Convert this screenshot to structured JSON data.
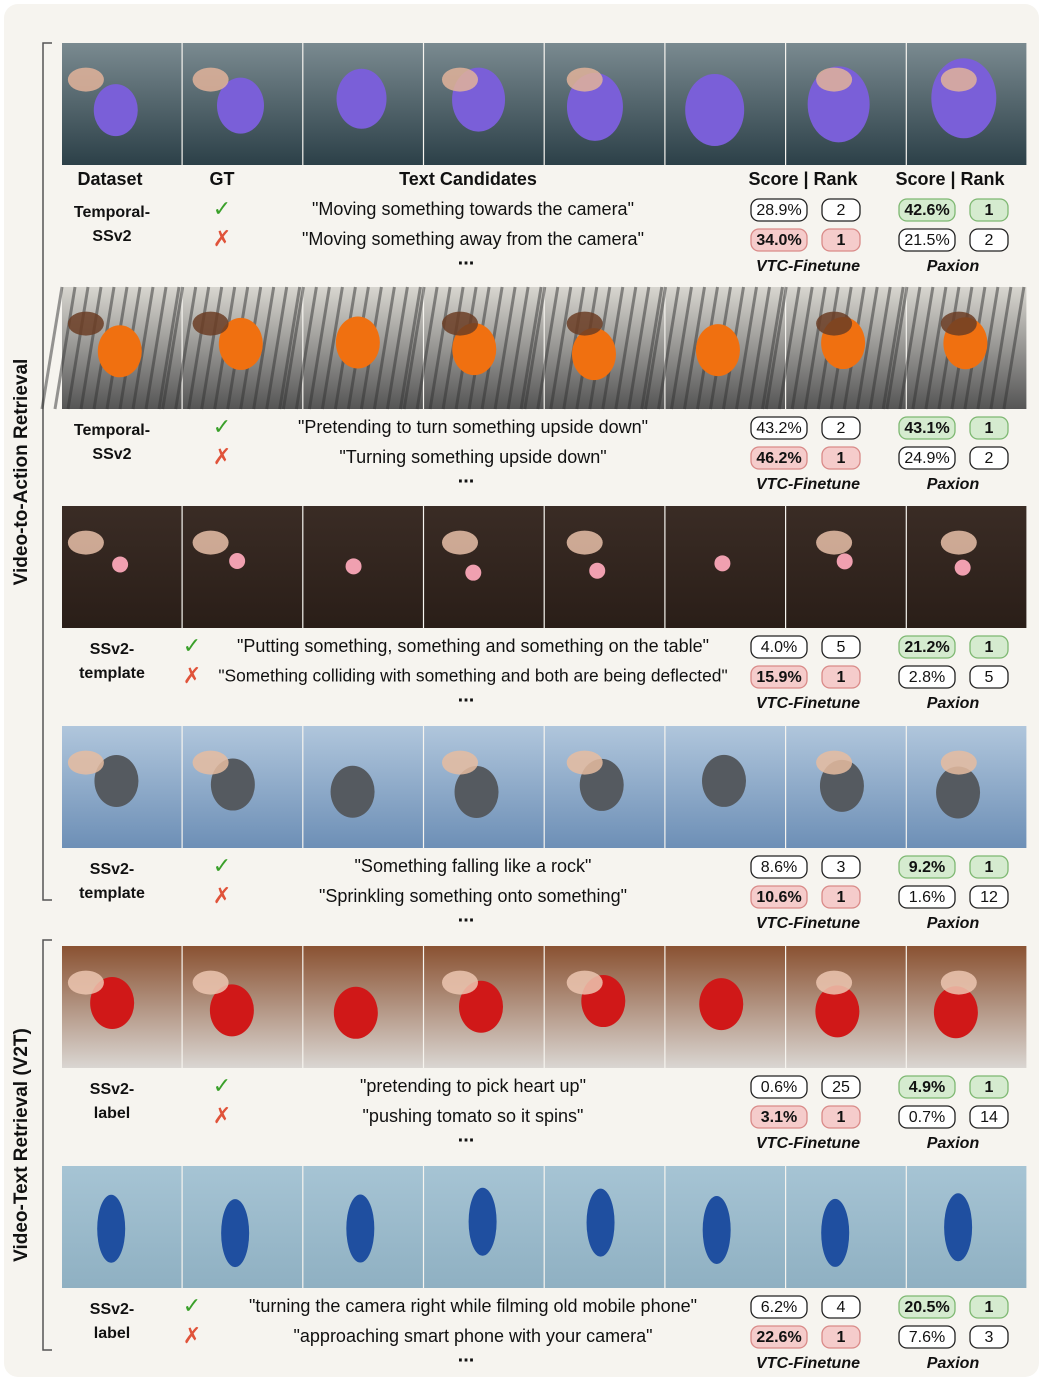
{
  "header": {
    "dataset": "Dataset",
    "gt": "GT",
    "text": "Text Candidates",
    "score_rank": "Score | Rank"
  },
  "groups": [
    "Video-to-Action Retrieval",
    "Video-Text Retrieval (V2T)"
  ],
  "methods": [
    "VTC-Finetune",
    "Paxion"
  ],
  "ellipsis": "...",
  "examples": [
    {
      "dataset": [
        "Temporal-",
        "SSv2"
      ],
      "candidates": [
        {
          "gt": "✓",
          "text": "\"Moving something towards the camera\"",
          "vtc": {
            "score": "28.9%",
            "rank": 2
          },
          "paxion": {
            "score": "42.6%",
            "rank": 1
          }
        },
        {
          "gt": "✗",
          "text": "\"Moving something away from the camera\"",
          "vtc": {
            "score": "34.0%",
            "rank": 1
          },
          "paxion": {
            "score": "21.5%",
            "rank": 2
          }
        }
      ]
    },
    {
      "dataset": [
        "Temporal-",
        "SSv2"
      ],
      "candidates": [
        {
          "gt": "✓",
          "text": "\"Pretending to turn something upside down\"",
          "vtc": {
            "score": "43.2%",
            "rank": 2
          },
          "paxion": {
            "score": "43.1%",
            "rank": 1
          }
        },
        {
          "gt": "✗",
          "text": "\"Turning something upside down\"",
          "vtc": {
            "score": "46.2%",
            "rank": 1
          },
          "paxion": {
            "score": "24.9%",
            "rank": 2
          }
        }
      ]
    },
    {
      "dataset": [
        "SSv2-",
        "template"
      ],
      "candidates": [
        {
          "gt": "✓",
          "text": "\"Putting something, something and something on the table\"",
          "vtc": {
            "score": "4.0%",
            "rank": 5
          },
          "paxion": {
            "score": "21.2%",
            "rank": 1
          }
        },
        {
          "gt": "✗",
          "text": "\"Something colliding with something and both are being deflected\"",
          "vtc": {
            "score": "15.9%",
            "rank": 1
          },
          "paxion": {
            "score": "2.8%",
            "rank": 5
          }
        }
      ]
    },
    {
      "dataset": [
        "SSv2-",
        "template"
      ],
      "candidates": [
        {
          "gt": "✓",
          "text": "\"Something falling like a rock\"",
          "vtc": {
            "score": "8.6%",
            "rank": 3
          },
          "paxion": {
            "score": "9.2%",
            "rank": 1
          }
        },
        {
          "gt": "✗",
          "text": "\"Sprinkling something onto something\"",
          "vtc": {
            "score": "10.6%",
            "rank": 1
          },
          "paxion": {
            "score": "1.6%",
            "rank": 12
          }
        }
      ]
    },
    {
      "dataset": [
        "SSv2-",
        "label"
      ],
      "candidates": [
        {
          "gt": "✓",
          "text": "\"pretending to pick heart up\"",
          "vtc": {
            "score": "0.6%",
            "rank": 25
          },
          "paxion": {
            "score": "4.9%",
            "rank": 1
          }
        },
        {
          "gt": "✗",
          "text": "\"pushing tomato so it spins\"",
          "vtc": {
            "score": "3.1%",
            "rank": 1
          },
          "paxion": {
            "score": "0.7%",
            "rank": 14
          }
        }
      ]
    },
    {
      "dataset": [
        "SSv2-",
        "label"
      ],
      "candidates": [
        {
          "gt": "✓",
          "text": "\"turning the camera right while filming old mobile phone\"",
          "vtc": {
            "score": "6.2%",
            "rank": 4
          },
          "paxion": {
            "score": "20.5%",
            "rank": 1
          }
        },
        {
          "gt": "✗",
          "text": "\"approaching smart phone with your camera\"",
          "vtc": {
            "score": "22.6%",
            "rank": 1
          },
          "paxion": {
            "score": "7.6%",
            "rank": 3
          }
        }
      ]
    }
  ]
}
